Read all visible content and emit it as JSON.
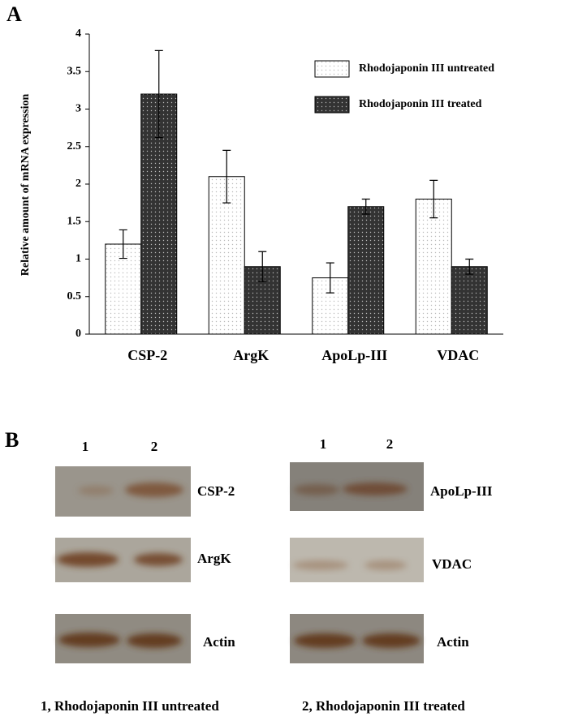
{
  "chart_data": {
    "type": "bar",
    "panel_label": "A",
    "y_label": "Relative amount of mRNA expression",
    "categories": [
      "CSP-2",
      "ArgK",
      "ApoLp-III",
      "VDAC"
    ],
    "series": [
      {
        "name": "Rhodojaponin III untreated",
        "color": "#ffffff",
        "values": [
          1.2,
          2.1,
          0.75,
          1.8
        ],
        "errors": [
          0.19,
          0.35,
          0.2,
          0.25
        ]
      },
      {
        "name": "Rhodojaponin III treated",
        "color": "#333333",
        "values": [
          3.2,
          0.9,
          1.7,
          0.9
        ],
        "errors": [
          0.58,
          0.2,
          0.1,
          0.1
        ]
      }
    ],
    "ylim": [
      0,
      4
    ],
    "yticks": [
      0,
      0.5,
      1,
      1.5,
      2,
      2.5,
      3,
      3.5,
      4
    ],
    "grid": false
  },
  "panel_b": {
    "panel_label": "B",
    "left": {
      "lanes": [
        "1",
        "2"
      ],
      "blots": [
        "CSP-2",
        "ArgK",
        "Actin"
      ]
    },
    "right": {
      "lanes": [
        "1",
        "2"
      ],
      "blots": [
        "ApoLp-III",
        "VDAC",
        "Actin"
      ]
    },
    "legend": [
      "1, Rhodojaponin III untreated",
      "2, Rhodojaponin III treated"
    ]
  }
}
